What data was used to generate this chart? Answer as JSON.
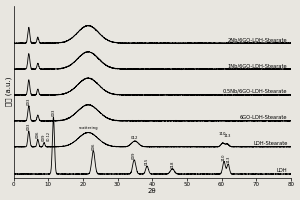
{
  "xlabel": "2θ",
  "ylabel": "强度 (a.u.)",
  "xlim": [
    0,
    80
  ],
  "background_color": "#e8e6e0",
  "series_labels": [
    "LDH",
    "LDH-Stearate",
    "6GO-LDH-Stearate",
    "0.5Nb/6GO-LDH-Stearate",
    "1Nb/6GO-LDH-Stearate",
    "2Nb/6GO-LDH-Stearate"
  ],
  "offsets": [
    0.0,
    1.05,
    2.05,
    3.05,
    4.05,
    5.05
  ],
  "ylim": [
    -0.15,
    6.5
  ],
  "font_size": 4.0,
  "tick_fontsize": 4.0,
  "label_fontsize": 5.0,
  "linewidth": 0.6
}
